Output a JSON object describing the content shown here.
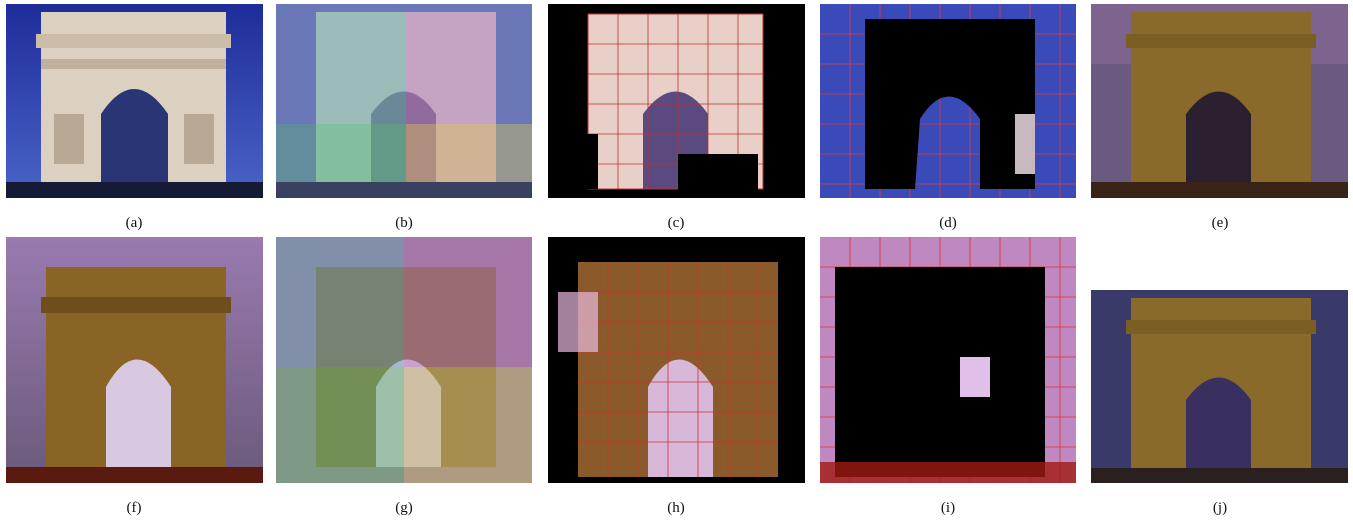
{
  "figure": {
    "captions": [
      "(a)",
      "(b)",
      "(c)",
      "(d)",
      "(e)",
      "(f)",
      "(g)",
      "(h)",
      "(i)",
      "(j)"
    ]
  },
  "palette": {
    "sky_day": "#2f40b0",
    "sky_dusk": "#7a5a8a",
    "stone_day": "#d8c9b6",
    "stone_night": "#a0782c",
    "grid_line": "#e23a3a",
    "mask_black": "#000000"
  },
  "panels": [
    {
      "id": "a",
      "scene": "day",
      "overlay": "none"
    },
    {
      "id": "b",
      "scene": "day",
      "overlay": "features"
    },
    {
      "id": "c",
      "scene": "day",
      "overlay": "mesh-masked-bg"
    },
    {
      "id": "d",
      "scene": "day",
      "overlay": "mesh-masked-fg"
    },
    {
      "id": "e",
      "scene": "night-transfer",
      "overlay": "none"
    },
    {
      "id": "f",
      "scene": "night",
      "overlay": "none"
    },
    {
      "id": "g",
      "scene": "night",
      "overlay": "features"
    },
    {
      "id": "h",
      "scene": "night",
      "overlay": "mesh-masked-bg"
    },
    {
      "id": "i",
      "scene": "night",
      "overlay": "mesh-masked-fg"
    },
    {
      "id": "j",
      "scene": "night-transfer",
      "overlay": "none"
    }
  ]
}
